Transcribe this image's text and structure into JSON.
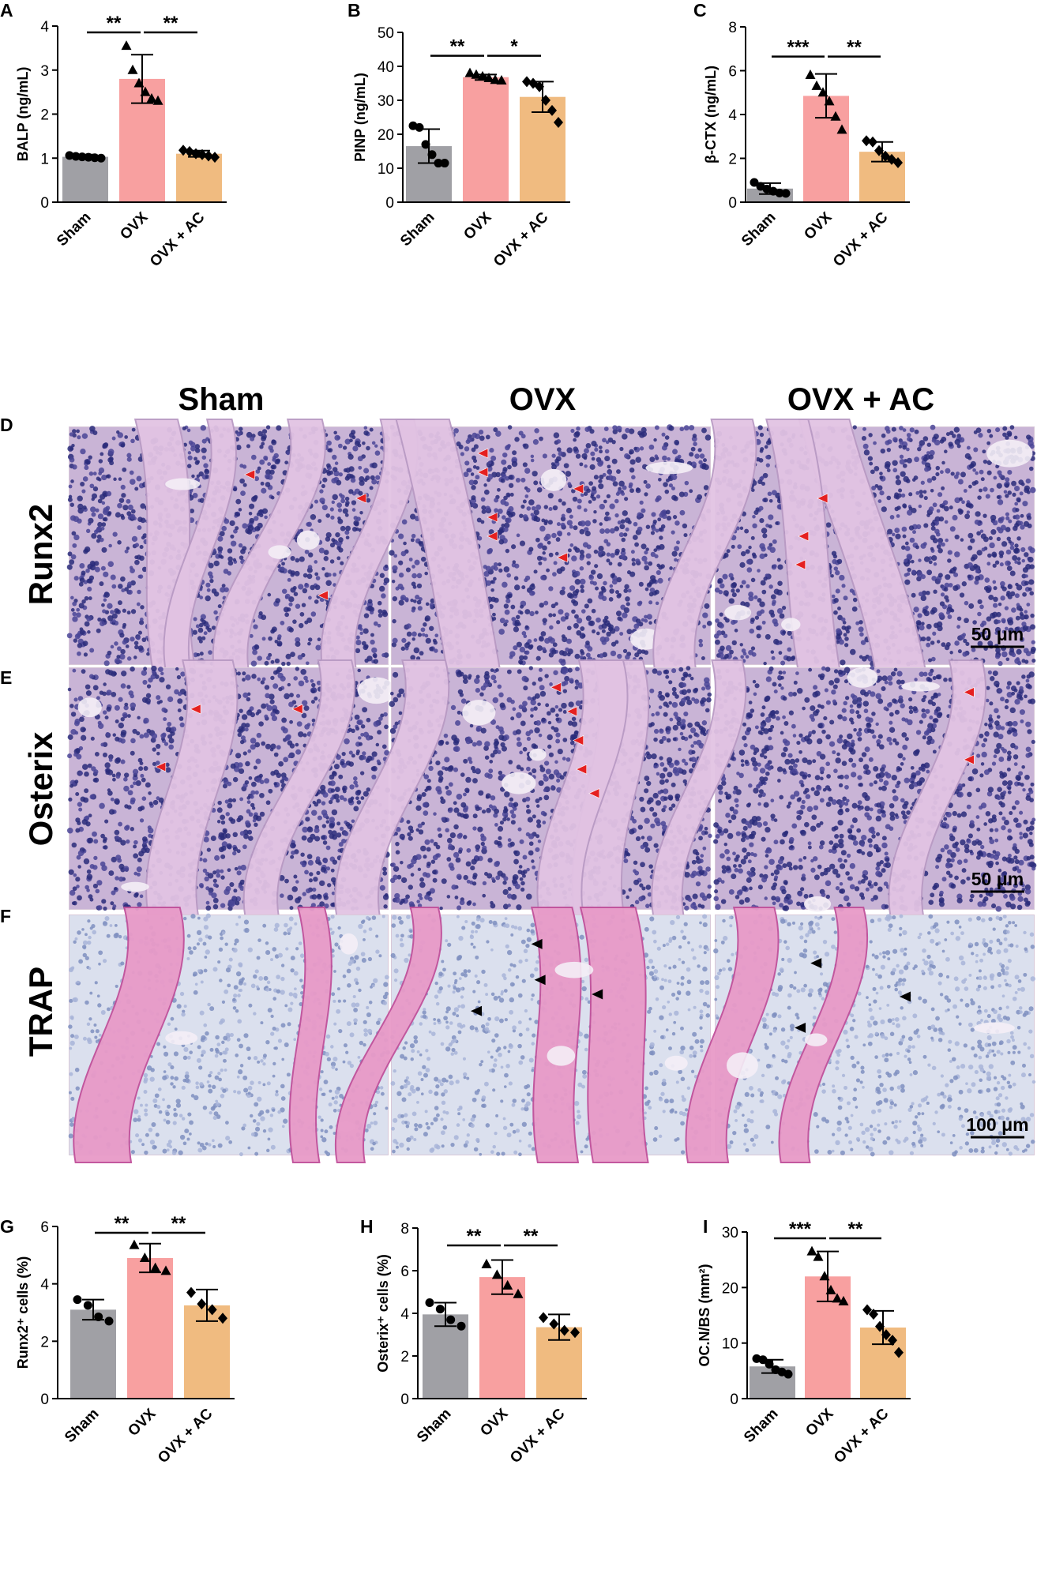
{
  "panel_letters": [
    "A",
    "B",
    "C",
    "D",
    "E",
    "F",
    "G",
    "H",
    "I"
  ],
  "column_headers": [
    "Sham",
    "OVX",
    "OVX + AC"
  ],
  "row_labels": [
    "Runx2",
    "Osterix",
    "TRAP"
  ],
  "scale_bars": [
    "50 μm",
    "50 μm",
    "100 μm"
  ],
  "colors": {
    "sham": "#a0a0a5",
    "ovx": "#f8a0a0",
    "ovx_ac": "#f0bb80",
    "red_arrow": "#e52020",
    "black_arrow": "#000000"
  },
  "chart_data": [
    {
      "type": "bar",
      "panel": "A",
      "categories": [
        "Sham",
        "OVX",
        "OVX + AC"
      ],
      "values": [
        1.03,
        2.8,
        1.1
      ],
      "errors": [
        0.05,
        0.55,
        0.07
      ],
      "points": [
        [
          1.06,
          1.04,
          1.03,
          1.02,
          1.01,
          1.0
        ],
        [
          3.55,
          3.0,
          2.7,
          2.5,
          2.35,
          2.3
        ],
        [
          1.18,
          1.15,
          1.1,
          1.08,
          1.05,
          1.02
        ]
      ],
      "markers": [
        "circle",
        "triangle",
        "diamond"
      ],
      "ylabel": "BALP (ng/mL)",
      "ylim": [
        0,
        4
      ],
      "yticks": [
        0,
        1,
        2,
        3,
        4
      ],
      "significance": [
        "**",
        "**"
      ]
    },
    {
      "type": "bar",
      "panel": "B",
      "categories": [
        "Sham",
        "OVX",
        "OVX + AC"
      ],
      "values": [
        16.5,
        36.8,
        31.0
      ],
      "errors": [
        5.0,
        0.8,
        4.5
      ],
      "points": [
        [
          22.5,
          22.0,
          17.0,
          14.0,
          11.5,
          11.5
        ],
        [
          38.0,
          37.5,
          37.0,
          36.5,
          36.0,
          35.8
        ],
        [
          35.5,
          35.0,
          34.0,
          30.0,
          27.0,
          23.5
        ]
      ],
      "markers": [
        "circle",
        "triangle",
        "diamond"
      ],
      "ylabel": "PINP (ng/mL)",
      "ylim": [
        0,
        50
      ],
      "yticks": [
        0,
        10,
        20,
        30,
        40,
        50
      ],
      "significance": [
        "**",
        "*"
      ]
    },
    {
      "type": "bar",
      "panel": "C",
      "categories": [
        "Sham",
        "OVX",
        "OVX + AC"
      ],
      "values": [
        0.62,
        4.85,
        2.3
      ],
      "errors": [
        0.25,
        1.0,
        0.45
      ],
      "points": [
        [
          0.9,
          0.72,
          0.6,
          0.5,
          0.42,
          0.4
        ],
        [
          5.8,
          5.3,
          5.0,
          4.6,
          3.9,
          3.3
        ],
        [
          2.8,
          2.75,
          2.35,
          2.1,
          1.95,
          1.8
        ]
      ],
      "markers": [
        "circle",
        "triangle",
        "diamond"
      ],
      "ylabel": "β-CTX (ng/mL)",
      "ylim": [
        0,
        8
      ],
      "yticks": [
        0,
        2,
        4,
        6,
        8
      ],
      "significance": [
        "***",
        "**"
      ]
    },
    {
      "type": "bar",
      "panel": "G",
      "categories": [
        "Sham",
        "OVX",
        "OVX + AC"
      ],
      "values": [
        3.1,
        4.9,
        3.25
      ],
      "errors": [
        0.35,
        0.5,
        0.55
      ],
      "points": [
        [
          3.45,
          3.25,
          2.85,
          2.7
        ],
        [
          5.35,
          4.9,
          4.55,
          4.45
        ],
        [
          3.7,
          3.3,
          3.1,
          2.8
        ]
      ],
      "markers": [
        "circle",
        "triangle",
        "diamond"
      ],
      "ylabel": "Runx2⁺ cells (%)",
      "ylim": [
        0,
        6
      ],
      "yticks": [
        0,
        2,
        4,
        6
      ],
      "significance": [
        "**",
        "**"
      ]
    },
    {
      "type": "bar",
      "panel": "H",
      "categories": [
        "Sham",
        "OVX",
        "OVX + AC"
      ],
      "values": [
        3.95,
        5.7,
        3.35
      ],
      "errors": [
        0.55,
        0.8,
        0.6
      ],
      "points": [
        [
          4.5,
          4.2,
          3.7,
          3.4
        ],
        [
          6.3,
          5.8,
          5.3,
          4.9
        ],
        [
          3.8,
          3.5,
          3.2,
          3.1
        ]
      ],
      "markers": [
        "circle",
        "triangle",
        "diamond"
      ],
      "ylabel": "Osterix⁺ cells (%)",
      "ylim": [
        0,
        8
      ],
      "yticks": [
        0,
        2,
        4,
        6,
        8
      ],
      "significance": [
        "**",
        "**"
      ]
    },
    {
      "type": "bar",
      "panel": "I",
      "categories": [
        "Sham",
        "OVX",
        "OVX + AC"
      ],
      "values": [
        5.8,
        22.0,
        12.8
      ],
      "errors": [
        1.2,
        4.5,
        3.0
      ],
      "points": [
        [
          7.2,
          7.0,
          6.2,
          5.2,
          4.8,
          4.4
        ],
        [
          26.5,
          25.5,
          22.0,
          19.5,
          18.0,
          17.5
        ],
        [
          16.0,
          15.2,
          13.0,
          11.5,
          10.5,
          8.3
        ]
      ],
      "markers": [
        "circle",
        "triangle",
        "diamond"
      ],
      "ylabel": "OC.N/BS (mm²)",
      "ylim": [
        0,
        30
      ],
      "yticks": [
        0,
        10,
        20,
        30
      ],
      "significance": [
        "***",
        "**"
      ]
    }
  ]
}
